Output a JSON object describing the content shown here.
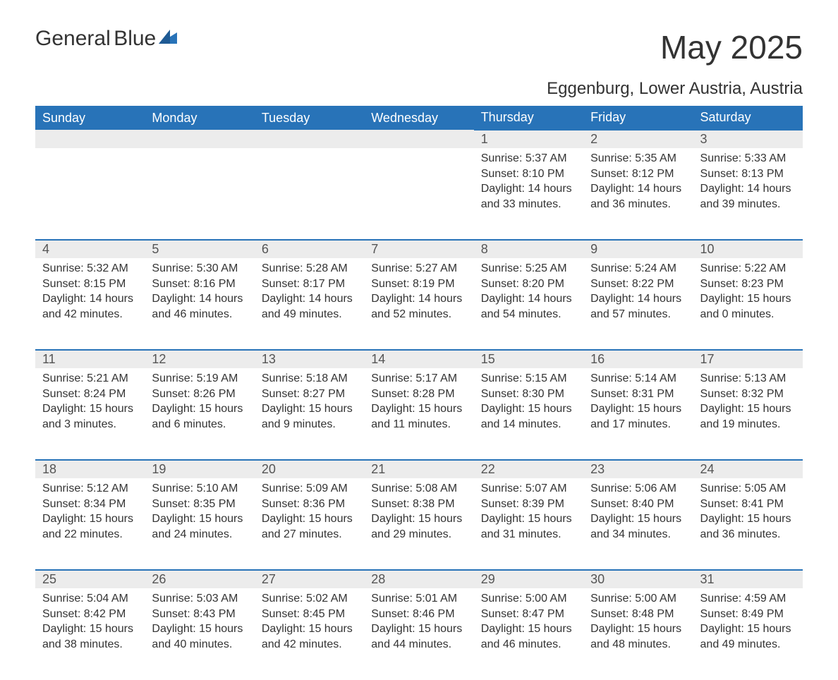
{
  "logo": {
    "word1": "General",
    "word2": "Blue",
    "logo_color": "#2873b8"
  },
  "title": "May 2025",
  "location": "Eggenburg, Lower Austria, Austria",
  "colors": {
    "header_bg": "#2873b8",
    "header_text": "#ffffff",
    "daynum_bg": "#ececec",
    "row_border": "#2873b8",
    "body_text": "#333333",
    "background": "#ffffff"
  },
  "typography": {
    "month_title_fontsize": 46,
    "location_fontsize": 24,
    "weekday_fontsize": 18,
    "daynum_fontsize": 18,
    "cell_fontsize": 16,
    "font_family": "Arial"
  },
  "layout": {
    "columns": 7,
    "rows": 5,
    "first_weekday": "Sunday",
    "leading_blanks": 4
  },
  "weekdays": [
    "Sunday",
    "Monday",
    "Tuesday",
    "Wednesday",
    "Thursday",
    "Friday",
    "Saturday"
  ],
  "days": [
    {
      "n": 1,
      "sunrise": "5:37 AM",
      "sunset": "8:10 PM",
      "daylight": "14 hours and 33 minutes."
    },
    {
      "n": 2,
      "sunrise": "5:35 AM",
      "sunset": "8:12 PM",
      "daylight": "14 hours and 36 minutes."
    },
    {
      "n": 3,
      "sunrise": "5:33 AM",
      "sunset": "8:13 PM",
      "daylight": "14 hours and 39 minutes."
    },
    {
      "n": 4,
      "sunrise": "5:32 AM",
      "sunset": "8:15 PM",
      "daylight": "14 hours and 42 minutes."
    },
    {
      "n": 5,
      "sunrise": "5:30 AM",
      "sunset": "8:16 PM",
      "daylight": "14 hours and 46 minutes."
    },
    {
      "n": 6,
      "sunrise": "5:28 AM",
      "sunset": "8:17 PM",
      "daylight": "14 hours and 49 minutes."
    },
    {
      "n": 7,
      "sunrise": "5:27 AM",
      "sunset": "8:19 PM",
      "daylight": "14 hours and 52 minutes."
    },
    {
      "n": 8,
      "sunrise": "5:25 AM",
      "sunset": "8:20 PM",
      "daylight": "14 hours and 54 minutes."
    },
    {
      "n": 9,
      "sunrise": "5:24 AM",
      "sunset": "8:22 PM",
      "daylight": "14 hours and 57 minutes."
    },
    {
      "n": 10,
      "sunrise": "5:22 AM",
      "sunset": "8:23 PM",
      "daylight": "15 hours and 0 minutes."
    },
    {
      "n": 11,
      "sunrise": "5:21 AM",
      "sunset": "8:24 PM",
      "daylight": "15 hours and 3 minutes."
    },
    {
      "n": 12,
      "sunrise": "5:19 AM",
      "sunset": "8:26 PM",
      "daylight": "15 hours and 6 minutes."
    },
    {
      "n": 13,
      "sunrise": "5:18 AM",
      "sunset": "8:27 PM",
      "daylight": "15 hours and 9 minutes."
    },
    {
      "n": 14,
      "sunrise": "5:17 AM",
      "sunset": "8:28 PM",
      "daylight": "15 hours and 11 minutes."
    },
    {
      "n": 15,
      "sunrise": "5:15 AM",
      "sunset": "8:30 PM",
      "daylight": "15 hours and 14 minutes."
    },
    {
      "n": 16,
      "sunrise": "5:14 AM",
      "sunset": "8:31 PM",
      "daylight": "15 hours and 17 minutes."
    },
    {
      "n": 17,
      "sunrise": "5:13 AM",
      "sunset": "8:32 PM",
      "daylight": "15 hours and 19 minutes."
    },
    {
      "n": 18,
      "sunrise": "5:12 AM",
      "sunset": "8:34 PM",
      "daylight": "15 hours and 22 minutes."
    },
    {
      "n": 19,
      "sunrise": "5:10 AM",
      "sunset": "8:35 PM",
      "daylight": "15 hours and 24 minutes."
    },
    {
      "n": 20,
      "sunrise": "5:09 AM",
      "sunset": "8:36 PM",
      "daylight": "15 hours and 27 minutes."
    },
    {
      "n": 21,
      "sunrise": "5:08 AM",
      "sunset": "8:38 PM",
      "daylight": "15 hours and 29 minutes."
    },
    {
      "n": 22,
      "sunrise": "5:07 AM",
      "sunset": "8:39 PM",
      "daylight": "15 hours and 31 minutes."
    },
    {
      "n": 23,
      "sunrise": "5:06 AM",
      "sunset": "8:40 PM",
      "daylight": "15 hours and 34 minutes."
    },
    {
      "n": 24,
      "sunrise": "5:05 AM",
      "sunset": "8:41 PM",
      "daylight": "15 hours and 36 minutes."
    },
    {
      "n": 25,
      "sunrise": "5:04 AM",
      "sunset": "8:42 PM",
      "daylight": "15 hours and 38 minutes."
    },
    {
      "n": 26,
      "sunrise": "5:03 AM",
      "sunset": "8:43 PM",
      "daylight": "15 hours and 40 minutes."
    },
    {
      "n": 27,
      "sunrise": "5:02 AM",
      "sunset": "8:45 PM",
      "daylight": "15 hours and 42 minutes."
    },
    {
      "n": 28,
      "sunrise": "5:01 AM",
      "sunset": "8:46 PM",
      "daylight": "15 hours and 44 minutes."
    },
    {
      "n": 29,
      "sunrise": "5:00 AM",
      "sunset": "8:47 PM",
      "daylight": "15 hours and 46 minutes."
    },
    {
      "n": 30,
      "sunrise": "5:00 AM",
      "sunset": "8:48 PM",
      "daylight": "15 hours and 48 minutes."
    },
    {
      "n": 31,
      "sunrise": "4:59 AM",
      "sunset": "8:49 PM",
      "daylight": "15 hours and 49 minutes."
    }
  ],
  "labels": {
    "sunrise": "Sunrise:",
    "sunset": "Sunset:",
    "daylight": "Daylight:"
  }
}
